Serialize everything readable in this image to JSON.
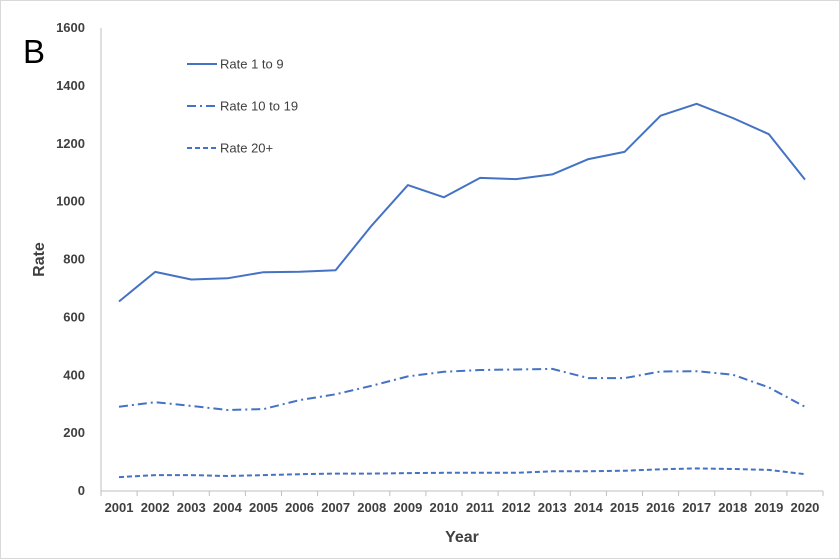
{
  "panel_label": "B",
  "colors": {
    "series": "#4472c4",
    "axis": "#bfbfbf",
    "text": "#404040"
  },
  "chart_data": {
    "type": "line",
    "xlabel": "Year",
    "ylabel": "Rate",
    "ylim": [
      0,
      1600
    ],
    "yticks": [
      "0",
      "200",
      "400",
      "600",
      "800",
      "1000",
      "1200",
      "1400",
      "1600"
    ],
    "x": [
      "2001",
      "2002",
      "2003",
      "2004",
      "2005",
      "2006",
      "2007",
      "2008",
      "2009",
      "2010",
      "2011",
      "2012",
      "2013",
      "2014",
      "2015",
      "2016",
      "2017",
      "2018",
      "2019",
      "2020"
    ],
    "grid": false,
    "legend_position": "top-left",
    "series": [
      {
        "name": "Rate 1 to 9",
        "dash": "solid",
        "values": [
          655,
          757,
          731,
          735,
          756,
          758,
          763,
          918,
          1057,
          1015,
          1082,
          1078,
          1094,
          1147,
          1172,
          1297,
          1338,
          1289,
          1233,
          1076
        ]
      },
      {
        "name": "Rate 10 to 19",
        "dash": "dashdot",
        "values": [
          291,
          307,
          294,
          280,
          283,
          314,
          334,
          364,
          396,
          412,
          418,
          420,
          422,
          390,
          390,
          413,
          414,
          402,
          358,
          291
        ]
      },
      {
        "name": "Rate 20+",
        "dash": "dashed",
        "values": [
          48,
          55,
          55,
          52,
          55,
          58,
          60,
          60,
          62,
          63,
          63,
          63,
          68,
          68,
          70,
          75,
          78,
          76,
          73,
          58
        ]
      }
    ]
  }
}
